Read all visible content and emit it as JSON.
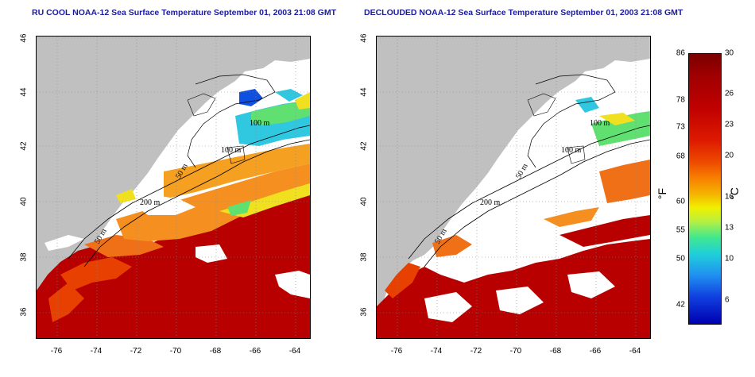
{
  "titles": {
    "left": "RU COOL NOAA-12 Sea Surface Temperature September 01, 2003 21:08 GMT",
    "right": "DECLOUDED NOAA-12 Sea Surface Temperature September 01, 2003 21:08 GMT"
  },
  "axes": {
    "x_ticks": [
      "-76",
      "-74",
      "-72",
      "-70",
      "-68",
      "-66",
      "-64"
    ],
    "y_ticks": [
      "46",
      "44",
      "42",
      "40",
      "38",
      "36"
    ]
  },
  "contours": {
    "labels": [
      "100 m",
      "100 m",
      "50 m",
      "200 m",
      "50 m"
    ]
  },
  "colorbar": {
    "fahrenheit_labels": [
      "86",
      "78",
      "73",
      "68",
      "60",
      "55",
      "50",
      "42"
    ],
    "celsius_labels": [
      "30",
      "26",
      "23",
      "20",
      "16",
      "13",
      "10",
      "6"
    ],
    "unit_f": "°F",
    "unit_c": "°C"
  },
  "colors": {
    "land": "#c0c0c0",
    "cloud": "#ffffff",
    "title": "#1a1aa0",
    "warm": "#b80000",
    "hot": "#e84000",
    "orange": "#f59020",
    "yellow": "#f0e020",
    "green": "#60e070",
    "cyan": "#30c8e0",
    "blue": "#1050e0"
  }
}
